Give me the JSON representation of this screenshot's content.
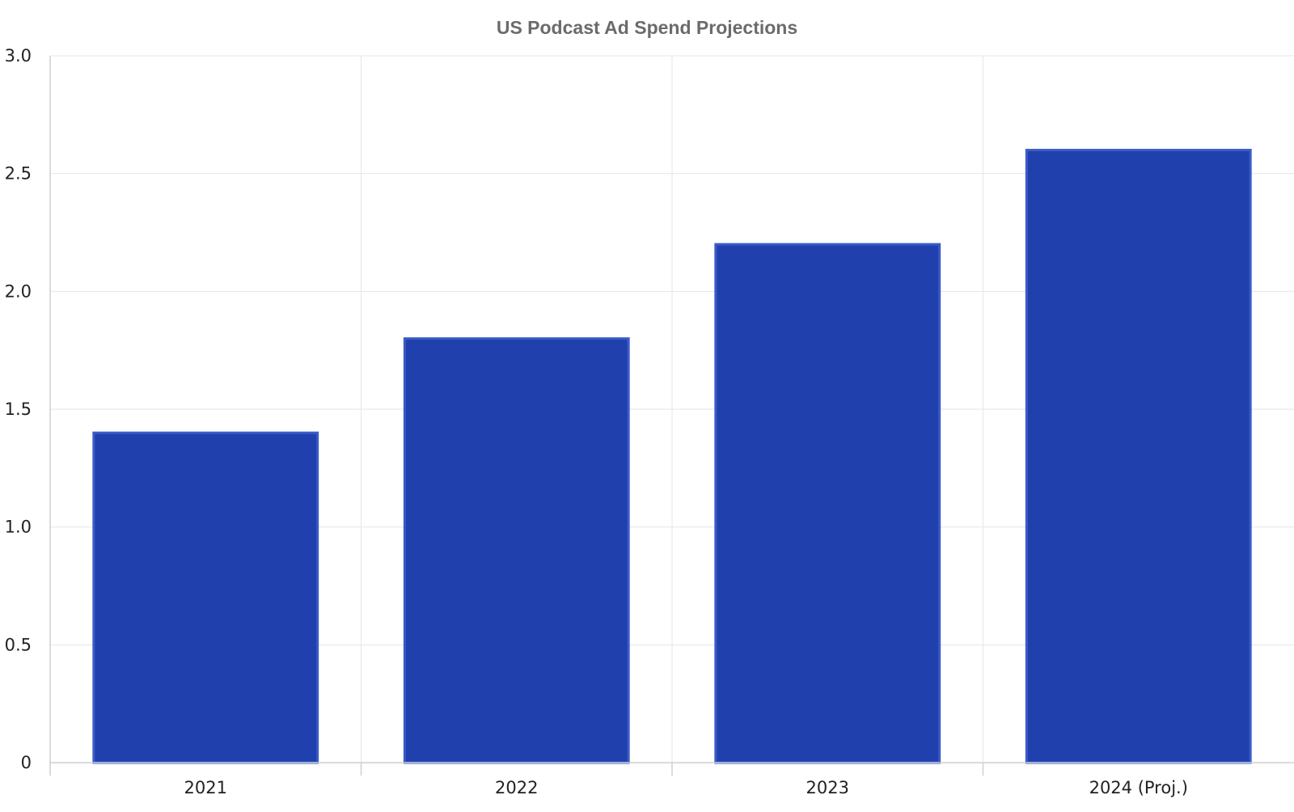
{
  "chart_data": {
    "type": "bar",
    "title": "US Podcast Ad Spend Projections",
    "xlabel": "",
    "ylabel": "",
    "categories": [
      "2021",
      "2022",
      "2023",
      "2024 (Proj.)"
    ],
    "values": [
      1.4,
      1.8,
      2.2,
      2.6
    ],
    "ylim": [
      0,
      3.0
    ],
    "yticks": [
      {
        "value": 0,
        "label": "0"
      },
      {
        "value": 0.5,
        "label": "0.5"
      },
      {
        "value": 1.0,
        "label": "1.0"
      },
      {
        "value": 1.5,
        "label": "1.5"
      },
      {
        "value": 2.0,
        "label": "2.0"
      },
      {
        "value": 2.5,
        "label": "2.5"
      },
      {
        "value": 3.0,
        "label": "3.0"
      }
    ],
    "grid": true,
    "legend": "none",
    "colors": {
      "bar_fill": "#1f40ad",
      "bar_outline": "#3a5cc8",
      "title": "#6b6b6b",
      "grid": "#e6e6e6"
    }
  }
}
